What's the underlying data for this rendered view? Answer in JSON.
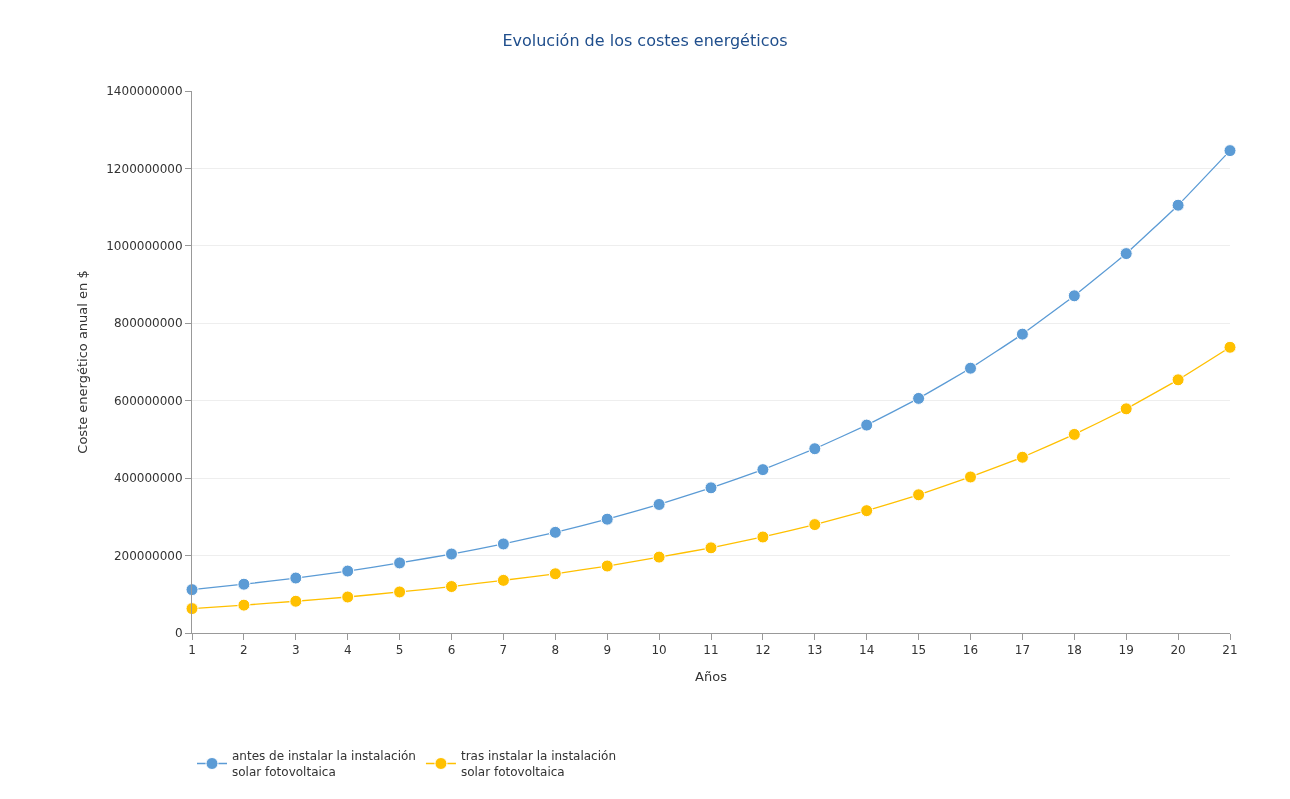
{
  "chart_data": {
    "type": "line",
    "title": "Evolución de los costes energéticos",
    "xlabel": "Años",
    "ylabel": "Coste energético anual en $",
    "x": [
      1,
      2,
      3,
      4,
      5,
      6,
      7,
      8,
      9,
      10,
      11,
      12,
      13,
      14,
      15,
      16,
      17,
      18,
      19,
      20,
      21
    ],
    "series": [
      {
        "name": "antes de instalar la instalación solar fotovoltaica",
        "color": "#5b9bd5",
        "values": [
          112000000,
          126000000,
          142000000,
          160000000,
          181000000,
          204000000,
          230000000,
          260000000,
          294000000,
          332000000,
          375000000,
          422000000,
          476000000,
          537000000,
          606000000,
          684000000,
          772000000,
          871000000,
          980000000,
          1105000000,
          1246000000
        ]
      },
      {
        "name": "tras instalar la instalación solar fotovoltaica",
        "color": "#ffc000",
        "values": [
          63000000,
          72000000,
          82000000,
          93000000,
          106000000,
          120000000,
          136000000,
          153000000,
          173000000,
          196000000,
          220000000,
          248000000,
          280000000,
          316000000,
          357000000,
          403000000,
          454000000,
          513000000,
          579000000,
          654000000,
          738000000
        ]
      }
    ],
    "xlim": [
      1,
      21
    ],
    "xticks": [
      1,
      2,
      3,
      4,
      5,
      6,
      7,
      8,
      9,
      10,
      11,
      12,
      13,
      14,
      15,
      16,
      17,
      18,
      19,
      20,
      21
    ],
    "ylim": [
      0,
      1400000000
    ],
    "yticks": [
      0,
      200000000,
      400000000,
      600000000,
      800000000,
      1000000000,
      1200000000,
      1400000000
    ],
    "grid": "y",
    "legend": "bottom left",
    "marker": "circle",
    "line_style": "solid"
  }
}
